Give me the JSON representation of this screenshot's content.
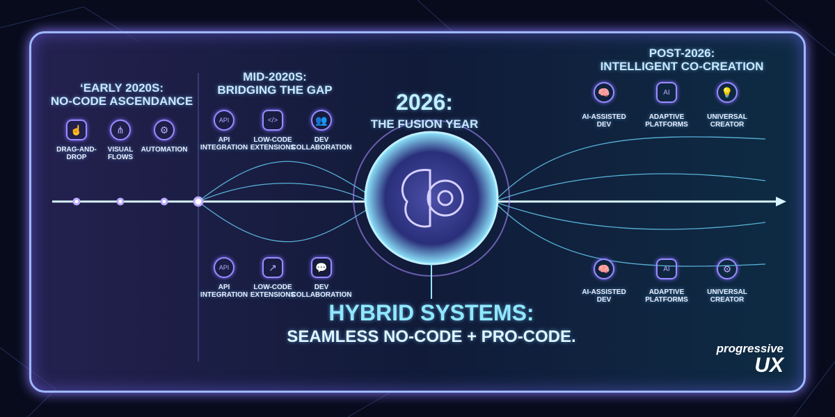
{
  "early": {
    "title1": "‘Early 2020s:",
    "title2": "No-Code Ascendance",
    "items": [
      {
        "label1": "Drag-and-",
        "label2": "drop",
        "icon": "drag-drop-hand-icon"
      },
      {
        "label1": "Visual",
        "label2": "flows",
        "icon": "flow-nodes-icon"
      },
      {
        "label1": "Automation",
        "label2": "",
        "icon": "gear-icon"
      }
    ]
  },
  "mid": {
    "title1": "Mid-2020s:",
    "title2": "Bridging the Gap",
    "top": [
      {
        "label1": "API",
        "label2": "Integration",
        "icon": "api-gear-icon"
      },
      {
        "label1": "Low-Code",
        "label2": "Extensions",
        "icon": "code-window-icon"
      },
      {
        "label1": "Dev",
        "label2": "Collaboration",
        "icon": "team-icon"
      }
    ],
    "bottom": [
      {
        "label1": "API",
        "label2": "Integration",
        "icon": "api-gear-icon"
      },
      {
        "label1": "Low-Code",
        "label2": "Extensions",
        "icon": "external-link-icon"
      },
      {
        "label1": "Dev",
        "label2": "Collaboration",
        "icon": "chat-team-icon"
      }
    ]
  },
  "fusion": {
    "title": "2026:",
    "subtitle": "The Fusion Year",
    "icon": "brain-gear-icon"
  },
  "hybrid": {
    "title": "Hybrid Systems:",
    "subtitle": "Seamless No-Code + Pro-Code."
  },
  "post": {
    "title1": "Post-2026:",
    "title2": "Intelligent Co-Creation",
    "top": [
      {
        "label1": "AI-Assisted",
        "label2": "Dev",
        "icon": "brain-head-icon"
      },
      {
        "label1": "Adaptive",
        "label2": "Platforms",
        "icon": "ai-chip-icon"
      },
      {
        "label1": "Universal",
        "label2": "Creator",
        "icon": "lightbulb-icon"
      }
    ],
    "bottom": [
      {
        "label1": "AI-Assisted",
        "label2": "Dev",
        "icon": "brain-head-icon"
      },
      {
        "label1": "Adaptive",
        "label2": "Platforms",
        "icon": "ai-chip-icon"
      },
      {
        "label1": "Universal",
        "label2": "Creator",
        "icon": "gear-icon"
      }
    ]
  },
  "logo": {
    "line1": "progressive",
    "line2": "UX"
  },
  "colors": {
    "accent_cyan": "#8fe8ff",
    "accent_violet": "#9a8cff"
  }
}
